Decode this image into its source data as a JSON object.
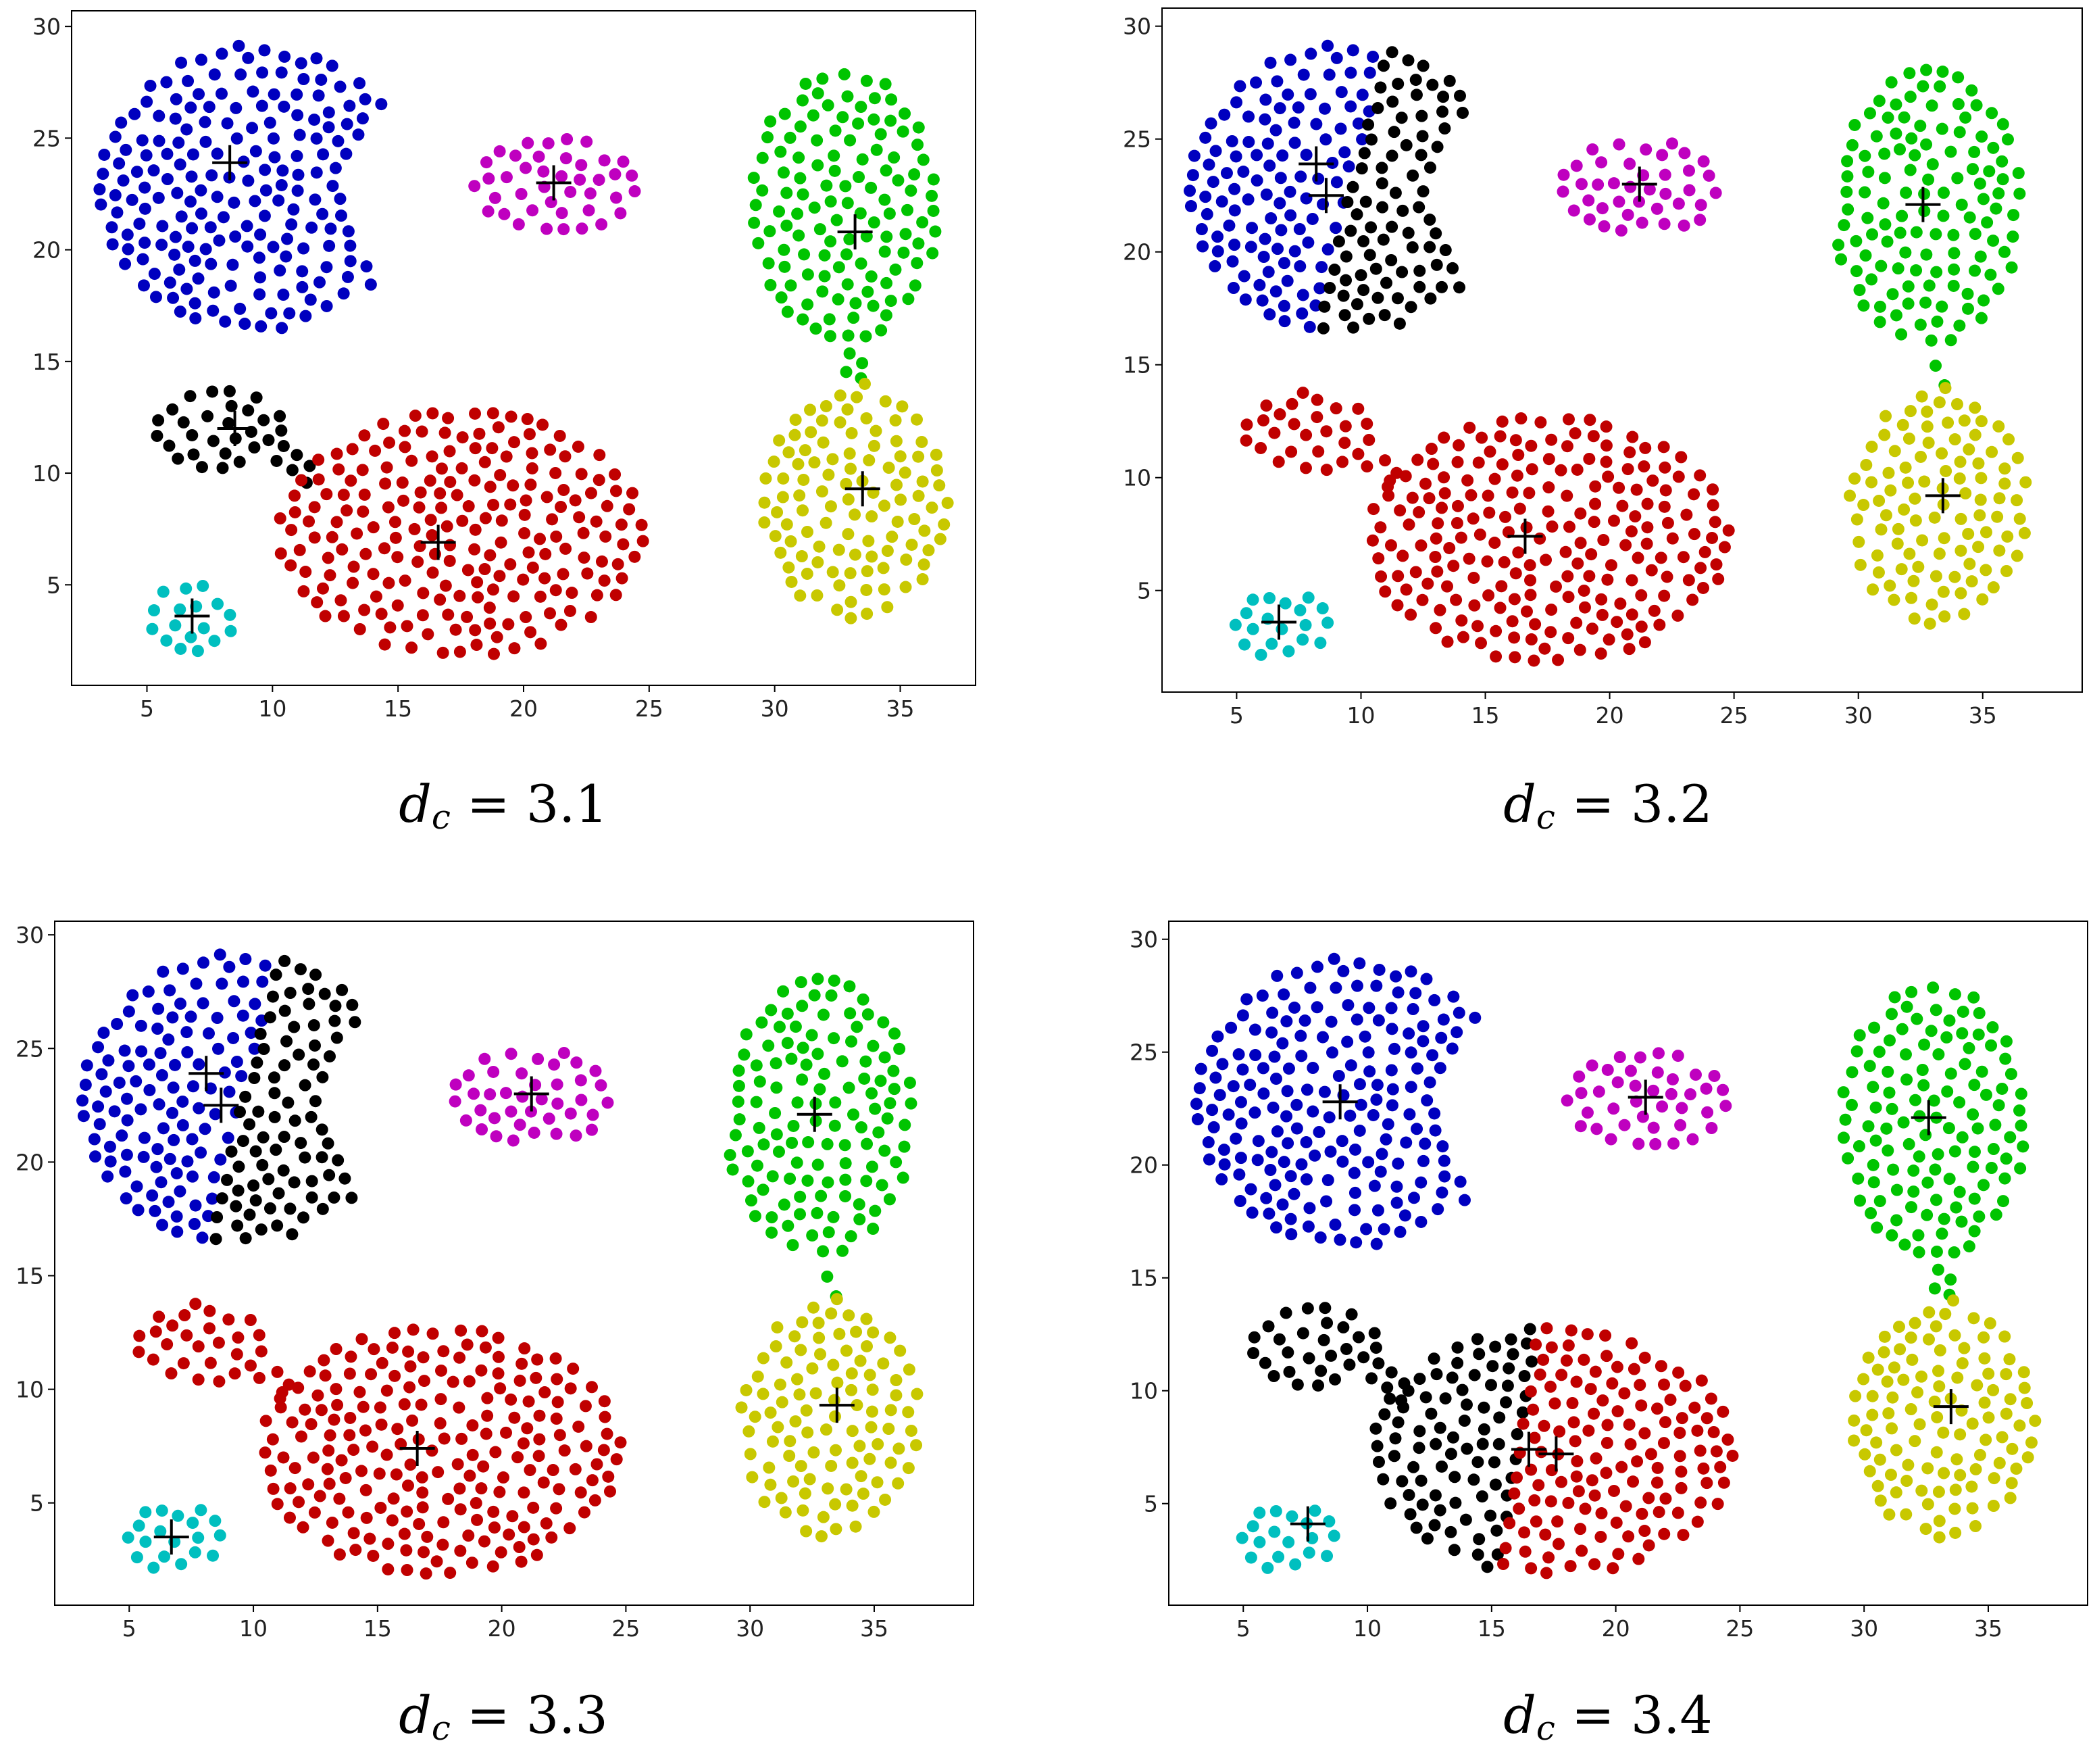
{
  "figure": {
    "colors": {
      "blue": "#0000bf",
      "magenta": "#bf00bf",
      "green": "#00c400",
      "yellow": "#c8c800",
      "black": "#000000",
      "red": "#c00000",
      "cyan": "#00bfbf",
      "center": "#000000"
    },
    "center_marker": "plus"
  },
  "chart_data": [
    {
      "type": "scatter",
      "caption": {
        "var": "d",
        "sub": "c",
        "rest": " = 3.1"
      },
      "xlim": [
        2,
        38
      ],
      "ylim": [
        0.5,
        30.7
      ],
      "xticks": [
        5,
        10,
        15,
        20,
        25,
        30,
        35
      ],
      "yticks": [
        5,
        10,
        15,
        20,
        25,
        30
      ],
      "grid": false,
      "legend": "none",
      "clusters": [
        {
          "color": "blue",
          "region": "crescent_full",
          "center": [
            8.3,
            23.9
          ]
        },
        {
          "color": "magenta",
          "region": "blob_magenta",
          "center": [
            21.2,
            23.0
          ]
        },
        {
          "color": "green",
          "region": "blob_green",
          "center": [
            33.2,
            20.8
          ]
        },
        {
          "color": "yellow",
          "region": "blob_yellow",
          "center": [
            33.5,
            9.3
          ]
        },
        {
          "color": "black",
          "region": "blob_small_left",
          "center": [
            8.5,
            12.0
          ]
        },
        {
          "color": "red",
          "region": "big_ellipse",
          "center": [
            16.6,
            6.9
          ]
        },
        {
          "color": "cyan",
          "region": "blob_cyan",
          "center": [
            6.8,
            3.6
          ]
        }
      ]
    },
    {
      "type": "scatter",
      "caption": {
        "var": "d",
        "sub": "c",
        "rest": " = 3.2"
      },
      "xlim": [
        2,
        39
      ],
      "ylim": [
        0.5,
        30.8
      ],
      "xticks": [
        5,
        10,
        15,
        20,
        25,
        30,
        35
      ],
      "yticks": [
        5,
        10,
        15,
        20,
        25,
        30
      ],
      "grid": false,
      "legend": "none",
      "clusters": [
        {
          "color": "blue",
          "region": "crescent_left",
          "center": [
            8.2,
            23.9
          ]
        },
        {
          "color": "black",
          "region": "crescent_right",
          "center": [
            8.6,
            22.5
          ]
        },
        {
          "color": "magenta",
          "region": "blob_magenta",
          "center": [
            21.2,
            23.0
          ]
        },
        {
          "color": "green",
          "region": "blob_green",
          "center": [
            32.6,
            22.1
          ]
        },
        {
          "color": "yellow",
          "region": "blob_yellow",
          "center": [
            33.4,
            9.2
          ]
        },
        {
          "color": "red",
          "region": "blob_small_left",
          "center": null
        },
        {
          "color": "red",
          "region": "big_ellipse",
          "center": [
            16.6,
            7.4
          ]
        },
        {
          "color": "cyan",
          "region": "blob_cyan",
          "center": [
            6.7,
            3.6
          ]
        }
      ]
    },
    {
      "type": "scatter",
      "caption": {
        "var": "d",
        "sub": "c",
        "rest": " = 3.3"
      },
      "xlim": [
        2,
        39
      ],
      "ylim": [
        0.5,
        30.6
      ],
      "xticks": [
        5,
        10,
        15,
        20,
        25,
        30,
        35
      ],
      "yticks": [
        5,
        10,
        15,
        20,
        25,
        30
      ],
      "grid": false,
      "legend": "none",
      "clusters": [
        {
          "color": "blue",
          "region": "crescent_left",
          "center": [
            8.1,
            23.9
          ]
        },
        {
          "color": "black",
          "region": "crescent_right",
          "center": [
            8.7,
            22.5
          ]
        },
        {
          "color": "magenta",
          "region": "blob_magenta",
          "center": [
            21.2,
            23.0
          ]
        },
        {
          "color": "green",
          "region": "blob_green",
          "center": [
            32.6,
            22.1
          ]
        },
        {
          "color": "yellow",
          "region": "blob_yellow",
          "center": [
            33.5,
            9.3
          ]
        },
        {
          "color": "red",
          "region": "blob_small_left",
          "center": null
        },
        {
          "color": "red",
          "region": "big_ellipse",
          "center": [
            16.6,
            7.4
          ]
        },
        {
          "color": "cyan",
          "region": "blob_cyan",
          "center": [
            6.7,
            3.5
          ]
        }
      ]
    },
    {
      "type": "scatter",
      "caption": {
        "var": "d",
        "sub": "c",
        "rest": " = 3.4"
      },
      "xlim": [
        2,
        39
      ],
      "ylim": [
        0.5,
        30.8
      ],
      "xticks": [
        5,
        10,
        15,
        20,
        25,
        30,
        35
      ],
      "yticks": [
        5,
        10,
        15,
        20,
        25,
        30
      ],
      "grid": false,
      "legend": "none",
      "clusters": [
        {
          "color": "blue",
          "region": "crescent_full",
          "center": [
            8.9,
            22.8
          ]
        },
        {
          "color": "magenta",
          "region": "blob_magenta",
          "center": [
            21.2,
            23.0
          ]
        },
        {
          "color": "green",
          "region": "blob_green",
          "center": [
            32.6,
            22.1
          ]
        },
        {
          "color": "yellow",
          "region": "blob_yellow",
          "center": [
            33.5,
            9.3
          ]
        },
        {
          "color": "black",
          "region": "blob_small_left",
          "center": null
        },
        {
          "color": "black",
          "region": "big_ellipse_left",
          "center": [
            16.5,
            7.4
          ]
        },
        {
          "color": "red",
          "region": "big_ellipse_right",
          "center": [
            17.6,
            7.2
          ]
        },
        {
          "color": "cyan",
          "region": "blob_cyan",
          "center": [
            7.6,
            4.1
          ]
        }
      ]
    }
  ]
}
